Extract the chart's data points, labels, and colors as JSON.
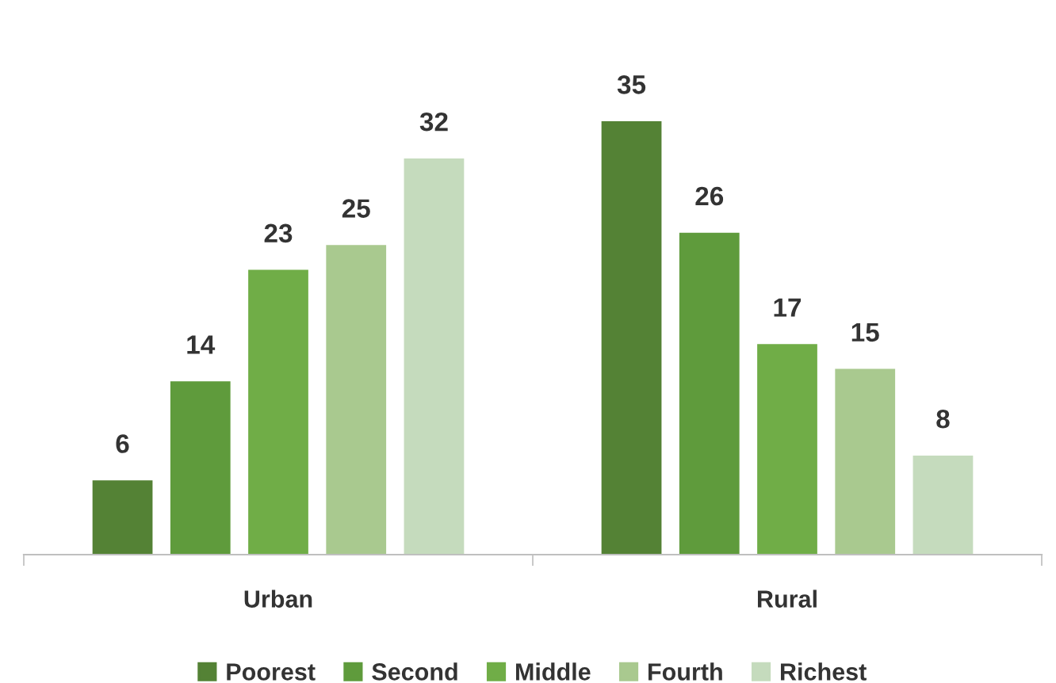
{
  "chart_data": {
    "type": "bar",
    "categories": [
      "Urban",
      "Rural"
    ],
    "series": [
      {
        "name": "Poorest",
        "color": "#548235",
        "values": [
          6,
          35
        ]
      },
      {
        "name": "Second",
        "color": "#5f9b3c",
        "values": [
          14,
          26
        ]
      },
      {
        "name": "Middle",
        "color": "#70ad47",
        "values": [
          23,
          17
        ]
      },
      {
        "name": "Fourth",
        "color": "#a9c98f",
        "values": [
          25,
          15
        ]
      },
      {
        "name": "Richest",
        "color": "#c5dbbd",
        "values": [
          32,
          8
        ]
      }
    ],
    "data_labels": true,
    "legend": "bottom",
    "grid": false
  }
}
